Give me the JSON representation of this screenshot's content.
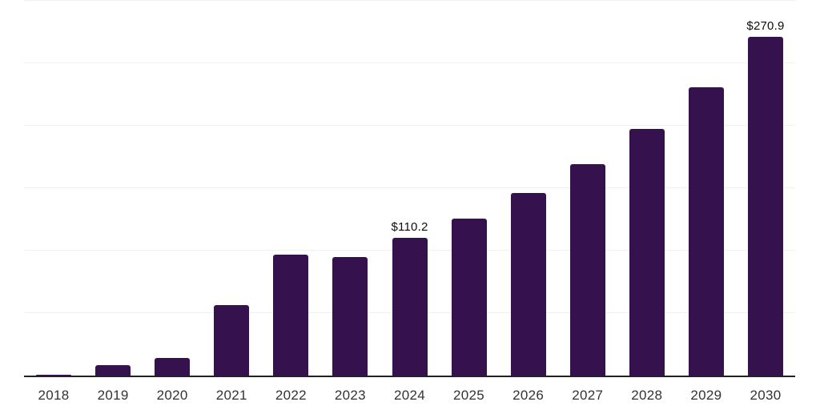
{
  "chart_data": {
    "type": "bar",
    "title": "",
    "xlabel": "",
    "ylabel": "",
    "categories": [
      "2018",
      "2019",
      "2020",
      "2021",
      "2022",
      "2023",
      "2024",
      "2025",
      "2026",
      "2027",
      "2028",
      "2029",
      "2030"
    ],
    "values": [
      0.4,
      8.5,
      14.3,
      56.5,
      96.6,
      95.0,
      110.2,
      125.4,
      146.3,
      169.4,
      197.5,
      230.5,
      270.9
    ],
    "data_labels": [
      {
        "category": "2024",
        "text": "$110.2"
      },
      {
        "category": "2030",
        "text": "$270.9"
      }
    ],
    "ylim": [
      0,
      300
    ],
    "gridline_step": 50,
    "grid": "horizontal",
    "y_axis_tick_labels_visible": false,
    "legend_position": "none",
    "colors": {
      "bar": "#35114E",
      "axis": "#222222",
      "gridline": "#F0F0F0",
      "data_label": "#0D0D0D",
      "tick_label": "#333333",
      "background": "#FFFFFF"
    }
  }
}
